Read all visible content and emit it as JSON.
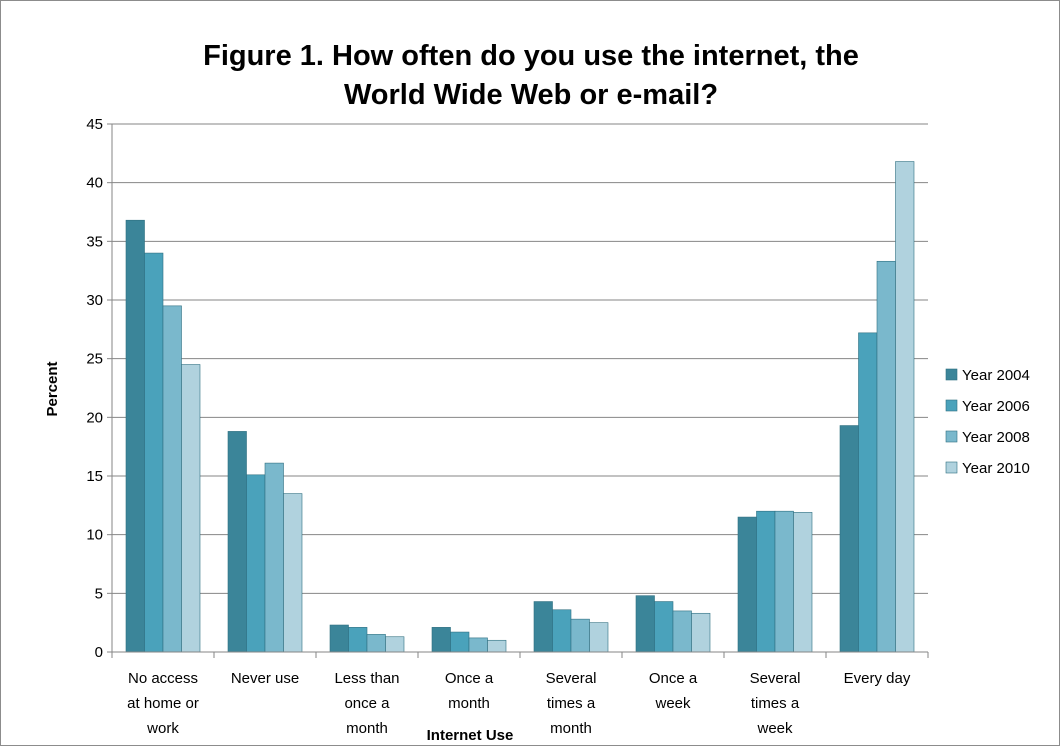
{
  "chart_data": {
    "type": "bar",
    "title_lines": [
      "Figure 1. How often do you use the internet, the",
      "World Wide Web or e-mail?"
    ],
    "xlabel": "Internet Use",
    "ylabel": "Percent",
    "ylim": [
      0,
      45
    ],
    "yticks": [
      "0",
      "5",
      "10",
      "15",
      "20",
      "25",
      "30",
      "35",
      "40",
      "45"
    ],
    "grid": true,
    "legend_position": "right",
    "categories": [
      [
        "No access",
        "at home or",
        "work"
      ],
      [
        "Never use"
      ],
      [
        "Less than",
        "once a",
        "month"
      ],
      [
        "Once a",
        "month"
      ],
      [
        "Several",
        "times a",
        "month"
      ],
      [
        "Once a",
        "week"
      ],
      [
        "Several",
        "times a",
        "week"
      ],
      [
        "Every day"
      ]
    ],
    "series": [
      {
        "name": "Year 2004",
        "color": "#3b8599",
        "values": [
          36.8,
          18.8,
          2.3,
          2.1,
          4.3,
          4.8,
          11.5,
          19.3
        ]
      },
      {
        "name": "Year 2006",
        "color": "#4aa2bb",
        "values": [
          34.0,
          15.1,
          2.1,
          1.7,
          3.6,
          4.3,
          12.0,
          27.2
        ]
      },
      {
        "name": "Year 2008",
        "color": "#7ab8cc",
        "values": [
          29.5,
          16.1,
          1.5,
          1.2,
          2.8,
          3.5,
          12.0,
          33.3
        ]
      },
      {
        "name": "Year 2010",
        "color": "#b0d2de",
        "values": [
          24.5,
          13.5,
          1.3,
          1.0,
          2.5,
          3.3,
          11.9,
          41.8
        ]
      }
    ]
  }
}
